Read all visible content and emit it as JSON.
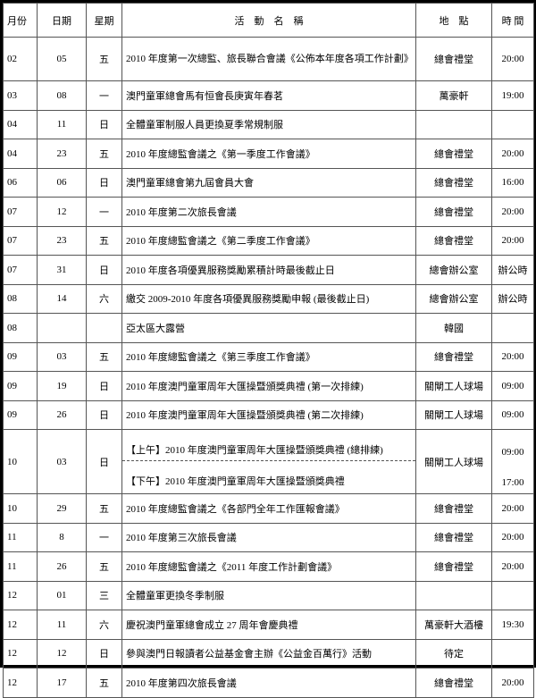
{
  "header": {
    "month": "月份",
    "date": "日期",
    "weekday": "星期",
    "activity": "活　動　名　稱",
    "venue": "地　點",
    "time": "時 間"
  },
  "rows": [
    {
      "month": "02",
      "date": "05",
      "weekday": "五",
      "activity": "2010 年度第一次總監、旅長聯合會議《公佈本年度各項工作計劃》",
      "venue": "總會禮堂",
      "time": "20:00"
    },
    {
      "month": "03",
      "date": "08",
      "weekday": "一",
      "activity": "澳門童軍總會馬有恒會長庚寅年春茗",
      "venue": "萬豪軒",
      "time": "19:00"
    },
    {
      "month": "04",
      "date": "11",
      "weekday": "日",
      "activity": "全體童軍制服人員更換夏季常規制服",
      "venue": "",
      "time": ""
    },
    {
      "month": "04",
      "date": "23",
      "weekday": "五",
      "activity": "2010 年度總監會議之《第一季度工作會議》",
      "venue": "總會禮堂",
      "time": "20:00"
    },
    {
      "month": "06",
      "date": "06",
      "weekday": "日",
      "activity": "澳門童軍總會第九屆會員大會",
      "venue": "總會禮堂",
      "time": "16:00"
    },
    {
      "month": "07",
      "date": "12",
      "weekday": "一",
      "activity": "2010 年度第二次旅長會議",
      "venue": "總會禮堂",
      "time": "20:00"
    },
    {
      "month": "07",
      "date": "23",
      "weekday": "五",
      "activity": "2010 年度總監會議之《第二季度工作會議》",
      "venue": "總會禮堂",
      "time": "20:00"
    },
    {
      "month": "07",
      "date": "31",
      "weekday": "日",
      "activity": "2010 年度各項優異服務獎勵累積計時最後截止日",
      "venue": "總會辦公室",
      "time": "辦公時"
    },
    {
      "month": "08",
      "date": "14",
      "weekday": "六",
      "activity": "繳交 2009-2010 年度各項優異服務獎勵申報 (最後截止日)",
      "venue": "總會辦公室",
      "time": "辦公時"
    },
    {
      "month": "08",
      "date": "",
      "weekday": "",
      "activity": "亞太區大露營",
      "venue": "韓國",
      "time": ""
    },
    {
      "month": "09",
      "date": "03",
      "weekday": "五",
      "activity": "2010 年度總監會議之《第三季度工作會議》",
      "venue": "總會禮堂",
      "time": "20:00"
    },
    {
      "month": "09",
      "date": "19",
      "weekday": "日",
      "activity": "2010 年度澳門童軍周年大匯操暨頒獎典禮 (第一次排練)",
      "venue": "關閘工人球場",
      "time": "09:00"
    },
    {
      "month": "09",
      "date": "26",
      "weekday": "日",
      "activity": "2010 年度澳門童軍周年大匯操暨頒獎典禮 (第二次排練)",
      "venue": "關閘工人球場",
      "time": "09:00"
    }
  ],
  "split_row": {
    "month": "10",
    "date": "03",
    "weekday": "日",
    "venue": "關閘工人球場",
    "am_activity": "【上午】2010 年度澳門童軍周年大匯操暨頒獎典禮 (總排練)",
    "am_time": "09:00",
    "pm_activity": "【下午】2010 年度澳門童軍周年大匯操暨頒獎典禮",
    "pm_time": "17:00"
  },
  "rows2": [
    {
      "month": "10",
      "date": "29",
      "weekday": "五",
      "activity": "2010 年度總監會議之《各部門全年工作匯報會議》",
      "venue": "總會禮堂",
      "time": "20:00"
    },
    {
      "month": "11",
      "date": "8",
      "weekday": "一",
      "activity": "2010 年度第三次旅長會議",
      "venue": "總會禮堂",
      "time": "20:00"
    },
    {
      "month": "11",
      "date": "26",
      "weekday": "五",
      "activity": "2010 年度總監會議之《2011 年度工作計劃會議》",
      "venue": "總會禮堂",
      "time": "20:00"
    },
    {
      "month": "12",
      "date": "01",
      "weekday": "三",
      "activity": "全體童軍更換冬季制服",
      "venue": "",
      "time": ""
    },
    {
      "month": "12",
      "date": "11",
      "weekday": "六",
      "activity": "慶祝澳門童軍總會成立 27 周年會慶典禮",
      "venue": "萬豪軒大酒樓",
      "time": "19:30"
    },
    {
      "month": "12",
      "date": "12",
      "weekday": "日",
      "activity": "參與澳門日報讀者公益基金會主辦《公益金百萬行》活動",
      "venue": "待定",
      "time": ""
    },
    {
      "month": "12",
      "date": "17",
      "weekday": "五",
      "activity": "2010 年度第四次旅長會議",
      "venue": "總會禮堂",
      "time": "20:00"
    }
  ]
}
